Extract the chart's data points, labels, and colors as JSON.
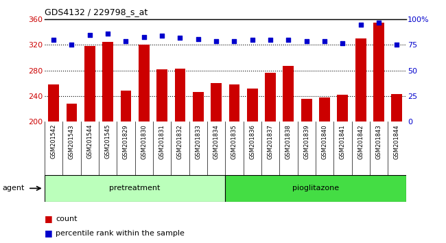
{
  "title": "GDS4132 / 229798_s_at",
  "samples": [
    "GSM201542",
    "GSM201543",
    "GSM201544",
    "GSM201545",
    "GSM201829",
    "GSM201830",
    "GSM201831",
    "GSM201832",
    "GSM201833",
    "GSM201834",
    "GSM201835",
    "GSM201836",
    "GSM201837",
    "GSM201838",
    "GSM201839",
    "GSM201840",
    "GSM201841",
    "GSM201842",
    "GSM201843",
    "GSM201844"
  ],
  "counts": [
    258,
    228,
    318,
    325,
    248,
    320,
    282,
    283,
    246,
    260,
    258,
    252,
    276,
    287,
    235,
    238,
    242,
    330,
    355,
    243
  ],
  "percentiles": [
    80,
    75,
    85,
    86,
    79,
    83,
    84,
    82,
    81,
    79,
    79,
    80,
    80,
    80,
    79,
    79,
    77,
    95,
    97,
    75
  ],
  "bar_color": "#cc0000",
  "dot_color": "#0000cc",
  "ylim_left": [
    200,
    360
  ],
  "ylim_right": [
    0,
    100
  ],
  "yticks_left": [
    200,
    240,
    280,
    320,
    360
  ],
  "yticks_right": [
    0,
    25,
    50,
    75,
    100
  ],
  "ytick_labels_right": [
    "0",
    "25",
    "50",
    "75",
    "100%"
  ],
  "pretreatment_color": "#bbffbb",
  "pioglitazone_color": "#44dd44",
  "agent_label": "agent",
  "pretreatment_label": "pretreatment",
  "pioglitazone_label": "pioglitazone",
  "legend_count": "count",
  "legend_percentile": "percentile rank within the sample",
  "bar_width": 0.6,
  "pre_count": 10,
  "pio_count": 10,
  "grid_lines": [
    240,
    280,
    320
  ],
  "xticklabel_bg": "#d8d8d8"
}
